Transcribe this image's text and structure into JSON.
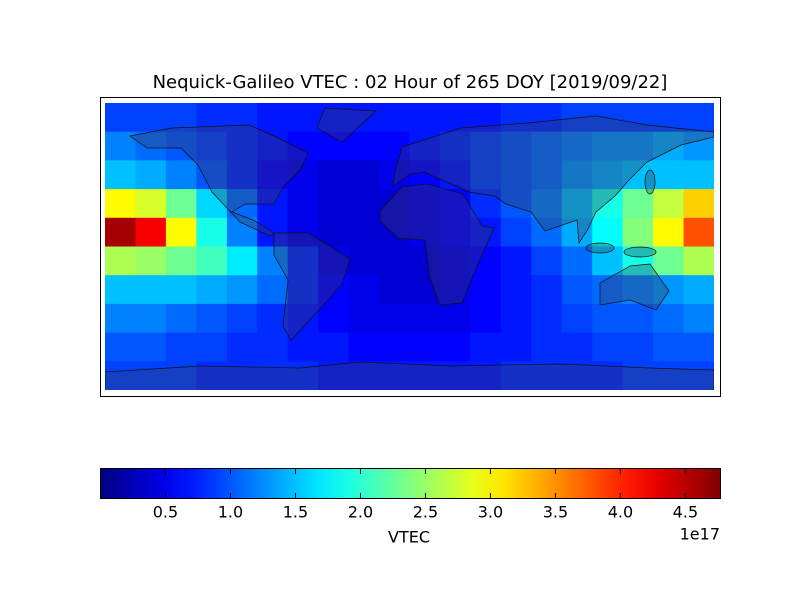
{
  "chart_data": {
    "type": "heatmap",
    "title": "Nequick-Galileo VTEC : 02 Hour of 265 DOY [2019/09/22]",
    "colormap": "jet",
    "values": [
      [
        0.9,
        0.9,
        0.9,
        0.8,
        0.8,
        0.7,
        0.7,
        0.7,
        0.7,
        0.7,
        0.7,
        0.7,
        0.7,
        0.8,
        0.8,
        0.9,
        0.9,
        0.9,
        0.9,
        0.9
      ],
      [
        1.2,
        1.1,
        1.0,
        0.9,
        0.8,
        0.7,
        0.6,
        0.6,
        0.6,
        0.6,
        0.7,
        0.8,
        0.9,
        1.0,
        1.1,
        1.2,
        1.3,
        1.3,
        1.4,
        1.3
      ],
      [
        1.5,
        1.4,
        1.2,
        1.0,
        0.8,
        0.6,
        0.5,
        0.4,
        0.4,
        0.5,
        0.6,
        0.7,
        0.9,
        1.0,
        1.1,
        1.3,
        1.4,
        1.5,
        1.5,
        1.5
      ],
      [
        3.0,
        2.8,
        2.3,
        1.6,
        1.1,
        0.7,
        0.5,
        0.4,
        0.4,
        0.4,
        0.5,
        0.6,
        0.8,
        1.0,
        1.2,
        1.5,
        1.9,
        2.3,
        2.7,
        3.2
      ],
      [
        4.6,
        4.2,
        3.0,
        1.9,
        1.2,
        0.7,
        0.5,
        0.4,
        0.4,
        0.4,
        0.5,
        0.6,
        0.7,
        0.9,
        1.1,
        1.4,
        1.8,
        2.4,
        3.0,
        3.8
      ],
      [
        2.6,
        2.5,
        2.3,
        2.1,
        1.7,
        1.2,
        0.8,
        0.5,
        0.4,
        0.4,
        0.4,
        0.5,
        0.6,
        0.7,
        0.9,
        1.1,
        1.5,
        1.9,
        2.3,
        2.6
      ],
      [
        1.5,
        1.5,
        1.5,
        1.4,
        1.3,
        1.1,
        0.8,
        0.6,
        0.5,
        0.4,
        0.4,
        0.5,
        0.6,
        0.7,
        0.8,
        1.0,
        1.1,
        1.2,
        1.3,
        1.4
      ],
      [
        1.2,
        1.2,
        1.1,
        1.0,
        0.9,
        0.8,
        0.7,
        0.6,
        0.5,
        0.5,
        0.5,
        0.5,
        0.6,
        0.7,
        0.8,
        0.9,
        1.0,
        1.0,
        1.1,
        1.2
      ],
      [
        1.0,
        1.0,
        0.9,
        0.9,
        0.8,
        0.8,
        0.7,
        0.7,
        0.6,
        0.6,
        0.6,
        0.6,
        0.7,
        0.7,
        0.8,
        0.8,
        0.9,
        0.9,
        1.0,
        1.0
      ],
      [
        0.9,
        0.9,
        0.9,
        0.8,
        0.8,
        0.8,
        0.8,
        0.7,
        0.7,
        0.7,
        0.7,
        0.7,
        0.7,
        0.8,
        0.8,
        0.8,
        0.8,
        0.9,
        0.9,
        0.9
      ]
    ],
    "colorbar": {
      "label": "VTEC",
      "offset_label": "1e17",
      "clim": [
        0,
        4.77
      ],
      "ticks": [
        0.5,
        {
          "value": 1,
          "label": "1.0"
        },
        1.5,
        {
          "value": 2,
          "label": "2.0"
        },
        2.5,
        {
          "value": 3,
          "label": "3.0"
        },
        3.5,
        {
          "value": 4,
          "label": "4.0"
        },
        4.5
      ]
    }
  }
}
